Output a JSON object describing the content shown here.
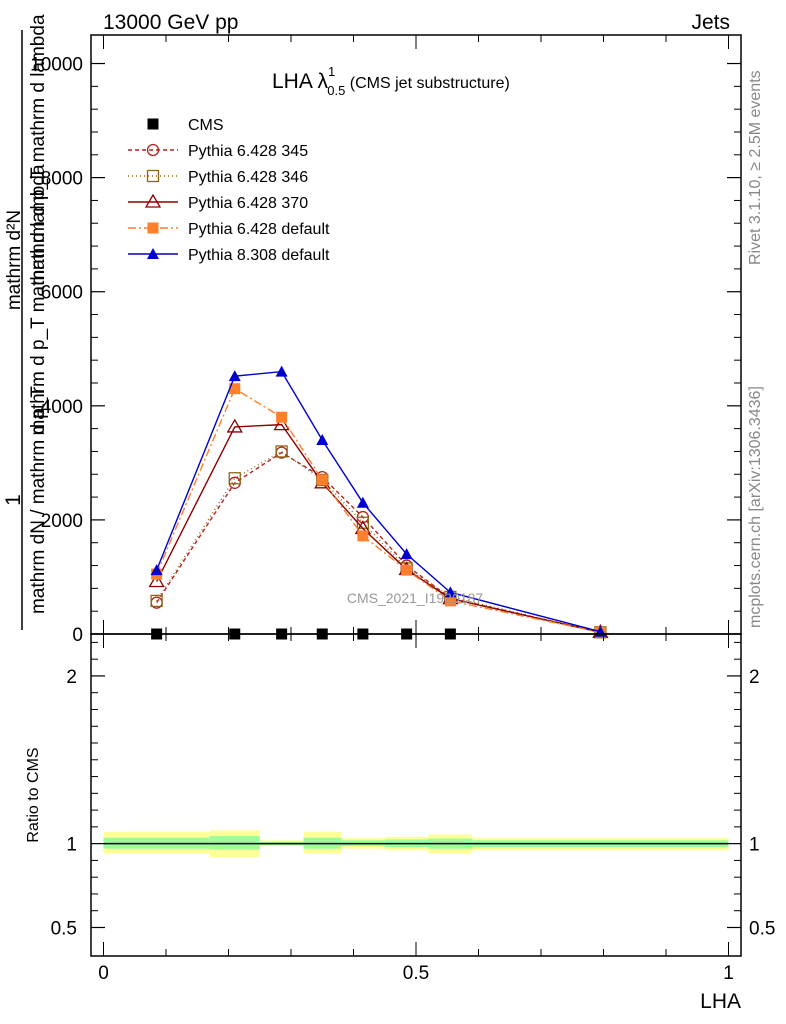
{
  "header": {
    "left": "13000 GeV pp",
    "right": "Jets"
  },
  "side_labels": {
    "rivet": "Rivet 3.1.10, ≥ 2.5M events",
    "mcplots": "mcplots.cern.ch [arXiv:1306.3436]"
  },
  "title": {
    "main": "LHA λ",
    "sup": "1",
    "sub": "0.5",
    "suffix": " (CMS jet substructure)"
  },
  "watermark": "CMS_2021_I1920187",
  "colors": {
    "cms": "#000000",
    "p345": "#b22222",
    "p346": "#8b6914",
    "p370": "#8b0000",
    "pdef": "#ff7f2a",
    "p8": "#0000cc",
    "band_outer": "#ffff99",
    "band_inner": "#99ff99"
  },
  "chart_data": [
    {
      "type": "line",
      "panel": "main",
      "ylabel": "1 / mathrm dN / mathrm d p_T mathrm d p_T mathrm d lambda mathrm d^2N",
      "ylabel_parts": {
        "numerator": "mathrm d²N",
        "den_line1": "mathrm d p_T mathrm d lambda",
        "den_line2": "mathrm d p_T mathrm d lambda",
        "one": "1",
        "dN": "mathrm dN / mathrm d p_T"
      },
      "xlim": [
        -0.02,
        1.02
      ],
      "ylim": [
        0,
        10500
      ],
      "yticks": [
        0,
        2000,
        4000,
        6000,
        8000,
        10000
      ],
      "ytick_labels": [
        "0",
        "2000",
        "4000",
        "6000",
        "8000",
        "10000"
      ],
      "x": [
        0.085,
        0.21,
        0.285,
        0.35,
        0.415,
        0.485,
        0.555,
        0.795
      ],
      "legend_position": "top-left",
      "series": [
        {
          "name": "CMS",
          "key": "cms",
          "marker": "square-filled",
          "values": [
            0,
            0,
            0,
            0,
            0,
            0,
            0,
            null
          ]
        },
        {
          "name": "Pythia 6.428 345",
          "key": "p345",
          "marker": "circle-open",
          "dash": "4,3",
          "values": [
            550,
            2650,
            3180,
            2750,
            2050,
            1200,
            630,
            30
          ]
        },
        {
          "name": "Pythia 6.428 346",
          "key": "p346",
          "marker": "square-open",
          "dash": "1,3",
          "values": [
            580,
            2730,
            3200,
            2700,
            1950,
            1150,
            650,
            30
          ]
        },
        {
          "name": "Pythia 6.428 370",
          "key": "p370",
          "marker": "triangle-open",
          "dash": "",
          "values": [
            920,
            3630,
            3670,
            2650,
            1850,
            1130,
            620,
            30
          ]
        },
        {
          "name": "Pythia 6.428 default",
          "key": "pdef",
          "marker": "square-filled",
          "dash": "8,3,2,3",
          "values": [
            1050,
            4300,
            3800,
            2700,
            1720,
            1120,
            580,
            30
          ]
        },
        {
          "name": "Pythia 8.308 default",
          "key": "p8",
          "marker": "triangle-filled",
          "dash": "",
          "values": [
            1120,
            4520,
            4600,
            3400,
            2300,
            1400,
            730,
            40
          ]
        }
      ]
    },
    {
      "type": "area",
      "panel": "ratio",
      "ylabel": "Ratio to CMS",
      "xlabel": "LHA",
      "xlim": [
        -0.02,
        1.02
      ],
      "ylim": [
        0.33,
        2.25
      ],
      "yticks": [
        0.5,
        1,
        2
      ],
      "ytick_labels": [
        "0.5",
        "1",
        "2"
      ],
      "xticks": [
        0,
        0.5,
        1
      ],
      "xtick_labels": [
        "0",
        "0.5",
        "1"
      ],
      "reference_line": 1,
      "bins": [
        {
          "x0": 0.0,
          "x1": 0.17,
          "outer": [
            0.94,
            1.07
          ],
          "inner": [
            0.97,
            1.035
          ]
        },
        {
          "x0": 0.17,
          "x1": 0.25,
          "outer": [
            0.92,
            1.08
          ],
          "inner": [
            0.965,
            1.045
          ]
        },
        {
          "x0": 0.25,
          "x1": 0.32,
          "outer": [
            0.985,
            1.02
          ],
          "inner": [
            0.99,
            1.01
          ]
        },
        {
          "x0": 0.32,
          "x1": 0.38,
          "outer": [
            0.94,
            1.07
          ],
          "inner": [
            0.97,
            1.035
          ]
        },
        {
          "x0": 0.38,
          "x1": 0.45,
          "outer": [
            0.97,
            1.035
          ],
          "inner": [
            0.985,
            1.02
          ]
        },
        {
          "x0": 0.45,
          "x1": 0.52,
          "outer": [
            0.96,
            1.04
          ],
          "inner": [
            0.98,
            1.025
          ]
        },
        {
          "x0": 0.52,
          "x1": 0.59,
          "outer": [
            0.94,
            1.055
          ],
          "inner": [
            0.97,
            1.03
          ]
        },
        {
          "x0": 0.59,
          "x1": 1.0,
          "outer": [
            0.96,
            1.035
          ],
          "inner": [
            0.98,
            1.02
          ]
        }
      ]
    }
  ]
}
